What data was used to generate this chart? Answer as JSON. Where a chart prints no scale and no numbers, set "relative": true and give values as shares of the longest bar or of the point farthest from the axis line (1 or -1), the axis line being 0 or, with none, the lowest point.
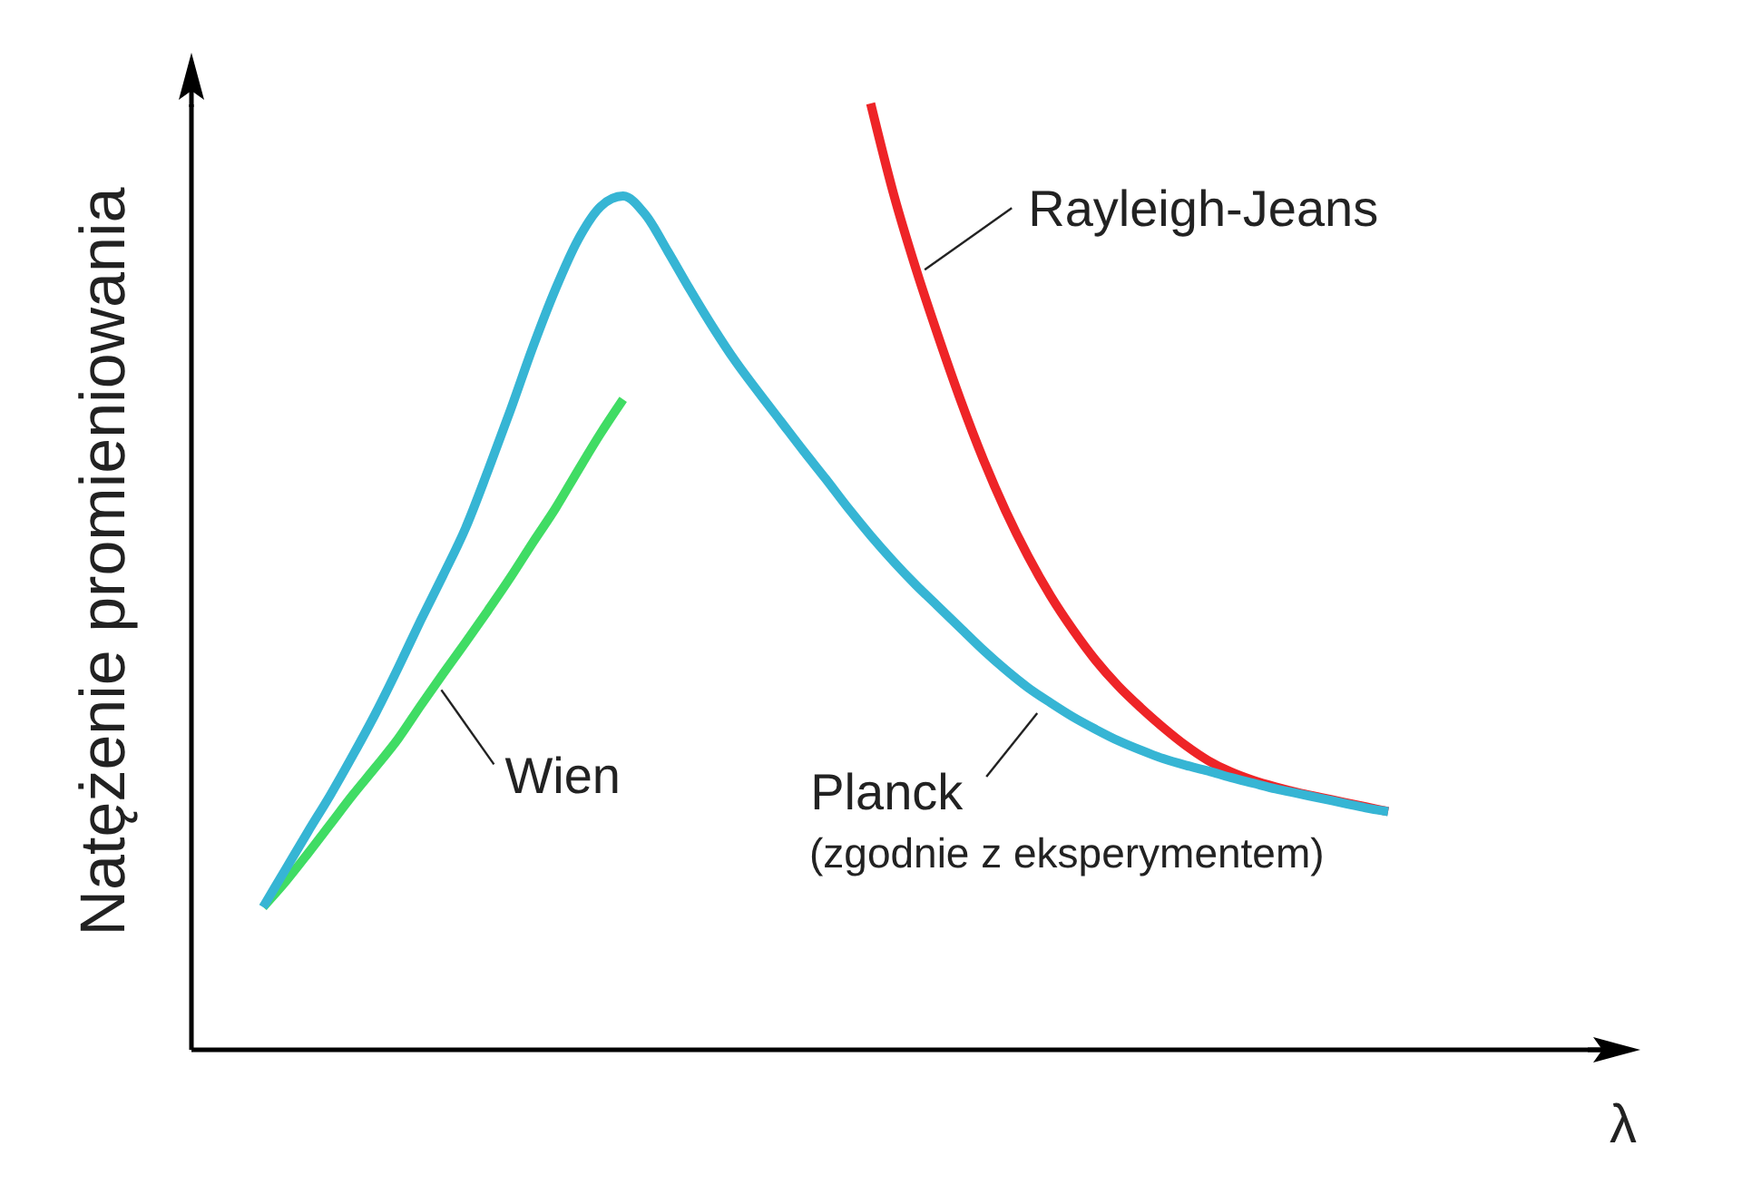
{
  "chart_data": {
    "type": "line",
    "xlabel": "λ",
    "ylabel": "Natężenie promieniowania",
    "relative": true,
    "categories": [
      null,
      null,
      null,
      null,
      null,
      null,
      null,
      null,
      null,
      null,
      null,
      null,
      null,
      null,
      null,
      null,
      null,
      null,
      null,
      null,
      null,
      null,
      null,
      null,
      null,
      null,
      null,
      null,
      null,
      null,
      null,
      null,
      null,
      null,
      null,
      null,
      null,
      null,
      null,
      null,
      null,
      null,
      null,
      null,
      null,
      null,
      null,
      null,
      null,
      null,
      null
    ],
    "series": [
      {
        "name": "Planck",
        "color": "#36b5d4",
        "values": [
          0.15,
          0.19,
          0.23,
          0.269,
          0.311,
          0.355,
          0.403,
          0.453,
          0.501,
          0.551,
          0.612,
          0.676,
          0.743,
          0.804,
          0.856,
          0.891,
          0.902,
          0.882,
          0.843,
          0.802,
          0.763,
          0.727,
          0.695,
          0.664,
          0.633,
          0.603,
          0.572,
          0.543,
          0.516,
          0.491,
          0.468,
          0.445,
          0.422,
          0.401,
          0.382,
          0.366,
          0.351,
          0.338,
          0.326,
          0.316,
          0.307,
          0.3,
          0.294,
          0.287,
          0.281,
          0.275,
          0.27,
          0.265,
          0.26,
          0.255,
          0.251
        ]
      },
      {
        "name": "Wien",
        "color": "#40dc64",
        "values": [
          0.15,
          0.177,
          0.207,
          0.238,
          0.269,
          0.298,
          0.328,
          0.363,
          0.397,
          0.43,
          0.464,
          0.499,
          0.536,
          0.572,
          0.612,
          0.651,
          0.687,
          null,
          null,
          null,
          null,
          null,
          null,
          null,
          null,
          null,
          null,
          null,
          null,
          null,
          null,
          null,
          null,
          null,
          null,
          null,
          null,
          null,
          null,
          null,
          null,
          null,
          null,
          null,
          null,
          null,
          null,
          null,
          null,
          null,
          null
        ]
      },
      {
        "name": "Rayleigh-Jeans",
        "color": "#ee2427",
        "values": [
          null,
          null,
          null,
          null,
          null,
          null,
          null,
          null,
          null,
          null,
          null,
          null,
          null,
          null,
          null,
          null,
          null,
          null,
          null,
          null,
          null,
          null,
          null,
          null,
          null,
          null,
          null,
          1.0,
          0.906,
          0.826,
          0.754,
          0.686,
          0.624,
          0.569,
          0.521,
          0.479,
          0.443,
          0.411,
          0.384,
          0.361,
          0.34,
          0.321,
          0.305,
          0.293,
          0.284,
          0.277,
          0.271,
          0.266,
          0.261,
          0.256,
          0.251
        ]
      }
    ],
    "annotations": [
      "(zgodnie z eksperymentem)"
    ]
  }
}
